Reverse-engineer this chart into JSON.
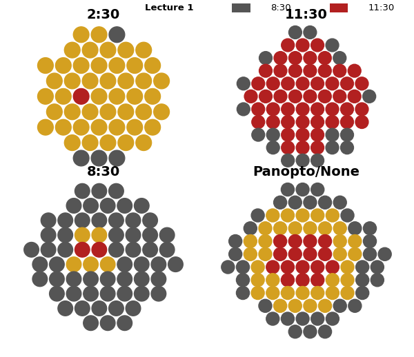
{
  "C_830": "#555555",
  "C_1130": "#b22020",
  "C_230": "#d4a020",
  "legend_label": "Lecture 1",
  "panel_titles": [
    "2:30",
    "11:30",
    "8:30",
    "Panopto/None"
  ],
  "bg": "#ffffff",
  "title_fontsize": 14,
  "legend_fontsize": 9.5,
  "dot_r": 0.44
}
